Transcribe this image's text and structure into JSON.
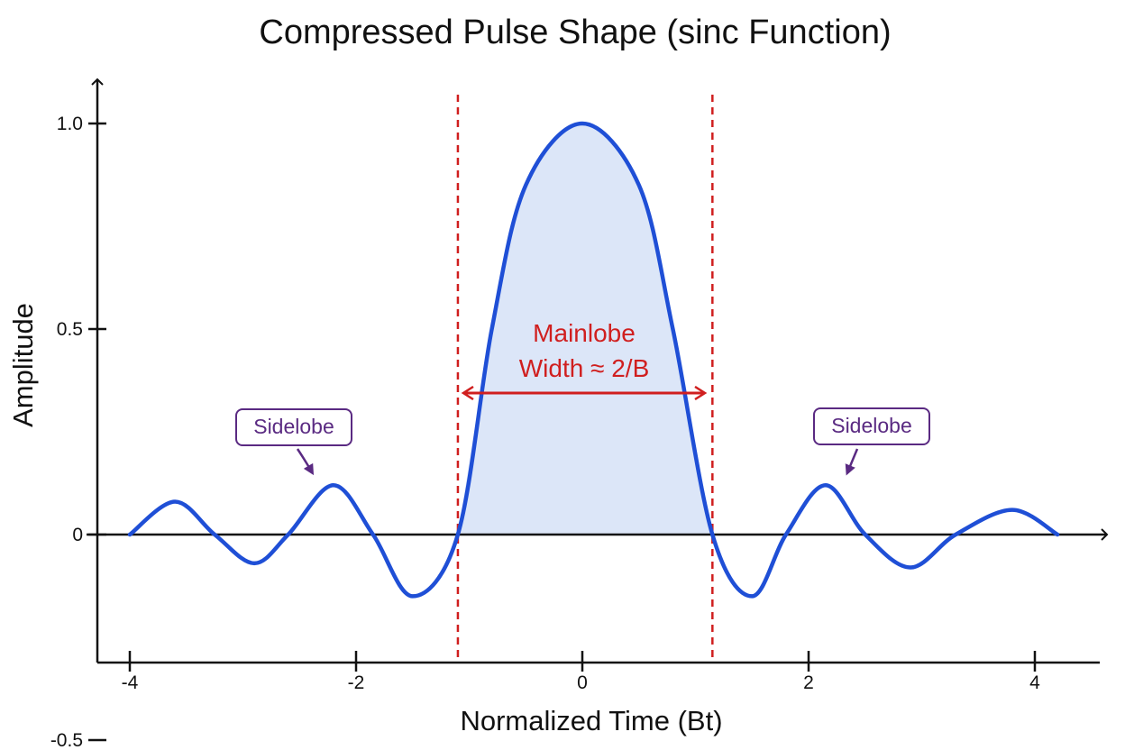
{
  "chart_data": {
    "type": "line",
    "title": "Compressed Pulse Shape (sinc Function)",
    "xlabel": "Normalized Time (Bt)",
    "ylabel": "Amplitude",
    "xlim": [
      -4.2,
      4.2
    ],
    "ylim": [
      -0.5,
      1.0
    ],
    "xticks": [
      -4,
      -2,
      0,
      2,
      4
    ],
    "xtick_labels": [
      "-4",
      "-2",
      "0",
      "2",
      "4"
    ],
    "yticks": [
      -0.5,
      0,
      0.5,
      1.0
    ],
    "ytick_labels": [
      "-0.5",
      "0",
      "0.5",
      "1.0"
    ],
    "grid": false,
    "series": [
      {
        "name": "",
        "x": [
          -4.0,
          -3.6,
          -3.25,
          -2.9,
          -2.6,
          -2.2,
          -1.85,
          -1.5,
          -1.1,
          -0.8,
          -0.5,
          0.0,
          0.5,
          0.8,
          1.15,
          1.5,
          1.8,
          2.15,
          2.5,
          2.9,
          3.3,
          3.8,
          4.2
        ],
        "y": [
          0.0,
          0.08,
          0.0,
          -0.07,
          0.0,
          0.12,
          0.0,
          -0.15,
          0.0,
          0.5,
          0.85,
          1.0,
          0.85,
          0.5,
          0.0,
          -0.15,
          0.0,
          0.12,
          0.0,
          -0.08,
          0.0,
          0.06,
          0.0
        ]
      }
    ],
    "mainlobe_bounds": [
      -1.1,
      1.15
    ],
    "annotations": [
      {
        "text_lines": [
          "Mainlobe",
          "Width ≈ 2/B"
        ],
        "x": 0.0,
        "y": 0.45
      },
      {
        "text": "Sidelobe",
        "x": -2.2,
        "y": 0.12
      },
      {
        "text": "Sidelobe",
        "x": 2.25,
        "y": 0.12
      }
    ],
    "colors": {
      "curve": "#1f4fd6",
      "fill": "#dce6f8",
      "bounds": "#d01f1f",
      "annotation": "#d01f1f",
      "sidelobe": "#5a2a82",
      "axis": "#111111"
    }
  }
}
